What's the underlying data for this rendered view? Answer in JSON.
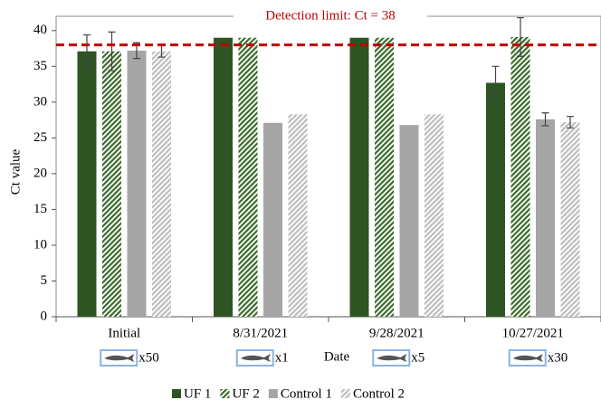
{
  "chart_data": {
    "type": "bar",
    "xlabel": "Date",
    "ylabel": "Ct value",
    "annotation": "Detection limit: Ct = 38",
    "detection_limit": 38,
    "categories": [
      "Initial",
      "8/31/2021",
      "9/28/2021",
      "10/27/2021"
    ],
    "category_notes": [
      "x50",
      "x1",
      "x5",
      "x30"
    ],
    "series": [
      {
        "name": "UF 1",
        "color": "#2f5424",
        "hatch": false,
        "values": [
          37.1,
          39,
          39,
          32.7
        ],
        "errors": [
          2.3,
          null,
          null,
          2.3
        ]
      },
      {
        "name": "UF 2",
        "color": "#3b6b2c",
        "hatch": true,
        "values": [
          37.1,
          39,
          39,
          39.1
        ],
        "errors": [
          2.7,
          null,
          null,
          2.7
        ]
      },
      {
        "name": "Control 1",
        "color": "#a5a5a5",
        "hatch": false,
        "values": [
          37.2,
          27.1,
          26.8,
          27.6
        ],
        "errors": [
          1.1,
          null,
          null,
          0.9
        ]
      },
      {
        "name": "Control 2",
        "color": "#bdbdbd",
        "hatch": true,
        "values": [
          37.1,
          28.3,
          28.3,
          27.2
        ],
        "errors": [
          0.8,
          null,
          null,
          0.8
        ]
      }
    ],
    "ylim": [
      0,
      42
    ],
    "yticks": [
      0,
      5,
      10,
      15,
      20,
      25,
      30,
      35,
      40
    ]
  }
}
